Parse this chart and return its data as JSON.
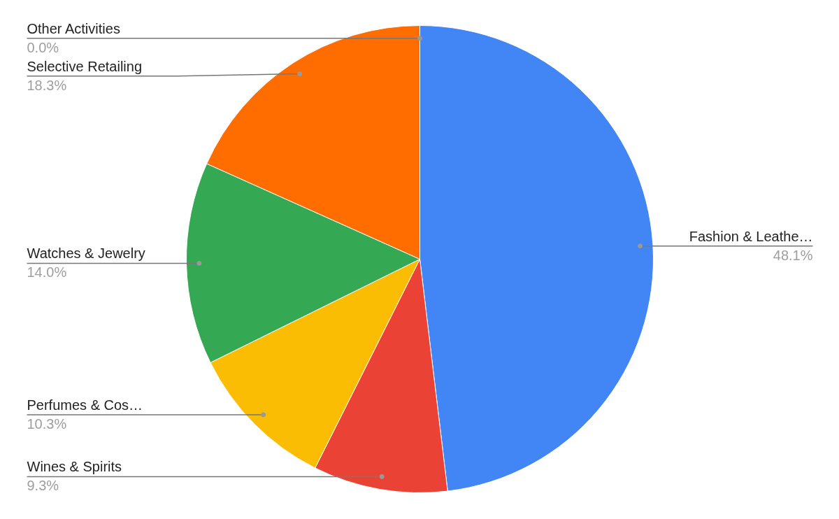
{
  "chart_data": {
    "type": "pie",
    "categories": [
      "Fashion & Leathe…",
      "Wines & Spirits",
      "Perfumes & Cos…",
      "Watches & Jewelry",
      "Selective Retailing",
      "Other Activities"
    ],
    "values": [
      48.1,
      9.3,
      10.3,
      14.0,
      18.3,
      0.0
    ],
    "colors": [
      "#4285f4",
      "#ea4335",
      "#fbbc04",
      "#34a853",
      "#ff6d01",
      "#46bdc6"
    ],
    "value_labels": [
      "48.1%",
      "9.3%",
      "10.3%",
      "14.0%",
      "18.3%",
      "0.0%"
    ]
  }
}
